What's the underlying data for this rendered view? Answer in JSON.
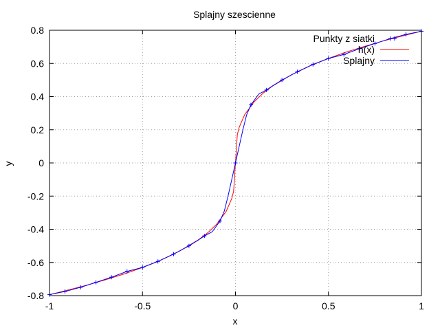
{
  "chart_data": {
    "type": "line",
    "title": "Splajny szescienne",
    "xlabel": "x",
    "ylabel": "y",
    "xlim": [
      -1,
      1
    ],
    "ylim": [
      -0.8,
      0.8
    ],
    "xticks": [
      -1,
      -0.5,
      0,
      0.5,
      1
    ],
    "xtick_labels": [
      "-1",
      "-0.5",
      "0",
      "0.5",
      "1"
    ],
    "yticks": [
      -0.8,
      -0.6,
      -0.4,
      -0.2,
      0,
      0.2,
      0.4,
      0.6,
      0.8
    ],
    "ytick_labels": [
      "-0.8",
      "-0.6",
      "-0.4",
      "-0.2",
      "0",
      "0.2",
      "0.4",
      "0.6",
      "0.8"
    ],
    "grid": true,
    "legend_position": "top-right",
    "series": [
      {
        "name": "Punkty z siatki",
        "kind": "points",
        "marker": "plus",
        "color": "#0000ff",
        "x": [
          -1,
          -0.917,
          -0.833,
          -0.75,
          -0.667,
          -0.583,
          -0.5,
          -0.417,
          -0.333,
          -0.25,
          -0.167,
          -0.083,
          0,
          0.083,
          0.167,
          0.25,
          0.333,
          0.417,
          0.5,
          0.583,
          0.667,
          0.75,
          0.833,
          0.917,
          1
        ],
        "y": [
          -0.794,
          -0.775,
          -0.75,
          -0.72,
          -0.689,
          -0.654,
          -0.63,
          -0.594,
          -0.55,
          -0.5,
          -0.44,
          -0.35,
          0,
          0.35,
          0.44,
          0.5,
          0.55,
          0.594,
          0.63,
          0.654,
          0.689,
          0.72,
          0.75,
          0.775,
          0.794
        ]
      },
      {
        "name": "h(x)",
        "kind": "line",
        "color": "#ff0000",
        "x": [
          -1,
          -0.9,
          -0.8,
          -0.7,
          -0.6,
          -0.5,
          -0.4,
          -0.3,
          -0.2,
          -0.15,
          -0.1,
          -0.05,
          -0.02,
          -0.01,
          0,
          0.01,
          0.02,
          0.05,
          0.1,
          0.15,
          0.2,
          0.3,
          0.4,
          0.5,
          0.6,
          0.7,
          0.8,
          0.9,
          1
        ],
        "y": [
          -0.794,
          -0.766,
          -0.737,
          -0.705,
          -0.67,
          -0.63,
          -0.585,
          -0.531,
          -0.464,
          -0.422,
          -0.368,
          -0.292,
          -0.215,
          -0.171,
          0,
          0.171,
          0.215,
          0.292,
          0.368,
          0.422,
          0.464,
          0.531,
          0.585,
          0.63,
          0.67,
          0.705,
          0.737,
          0.766,
          0.794
        ]
      },
      {
        "name": "Splajny",
        "kind": "line",
        "color": "#0000ff",
        "x": [
          -1,
          -0.917,
          -0.833,
          -0.75,
          -0.667,
          -0.583,
          -0.5,
          -0.417,
          -0.333,
          -0.25,
          -0.2,
          -0.167,
          -0.125,
          -0.083,
          -0.06,
          -0.04,
          -0.02,
          0,
          0.02,
          0.04,
          0.06,
          0.083,
          0.125,
          0.167,
          0.2,
          0.25,
          0.333,
          0.417,
          0.5,
          0.583,
          0.667,
          0.75,
          0.833,
          0.917,
          1
        ],
        "y": [
          -0.794,
          -0.775,
          -0.75,
          -0.72,
          -0.689,
          -0.654,
          -0.63,
          -0.594,
          -0.55,
          -0.5,
          -0.465,
          -0.44,
          -0.415,
          -0.35,
          -0.29,
          -0.2,
          -0.1,
          0,
          0.1,
          0.2,
          0.29,
          0.35,
          0.415,
          0.44,
          0.465,
          0.5,
          0.55,
          0.594,
          0.63,
          0.654,
          0.689,
          0.72,
          0.75,
          0.775,
          0.794
        ]
      }
    ]
  }
}
